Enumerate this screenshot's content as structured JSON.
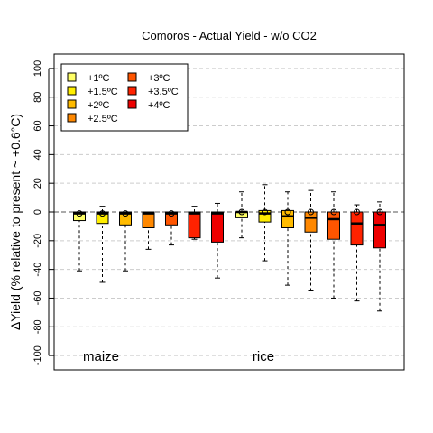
{
  "chart_data": {
    "type": "box",
    "title": "Comoros - Actual Yield - w/o CO2",
    "ylabel": "ΔYield (% relative to present ~ +0.6°C)",
    "xlabel": "",
    "ylim": [
      -110,
      110
    ],
    "yticks": [
      -100,
      -80,
      -60,
      -40,
      -20,
      0,
      20,
      40,
      60,
      80,
      100
    ],
    "grid": true,
    "legend_position": "top-left",
    "legend": [
      {
        "label": "+1ºC",
        "color": "#ffff66"
      },
      {
        "label": "+1.5ºC",
        "color": "#ffee00"
      },
      {
        "label": "+2ºC",
        "color": "#ffbb00"
      },
      {
        "label": "+2.5ºC",
        "color": "#ff8800"
      },
      {
        "label": "+3ºC",
        "color": "#ff5500"
      },
      {
        "label": "+3.5ºC",
        "color": "#ff2200"
      },
      {
        "label": "+4ºC",
        "color": "#ee0000"
      }
    ],
    "groups": [
      {
        "name": "maize",
        "boxes": [
          {
            "warming": "+1ºC",
            "whisker_low": -41,
            "q1": -6,
            "median": -1,
            "q3": 0,
            "whisker_high": 0,
            "mean": -1
          },
          {
            "warming": "+1.5ºC",
            "whisker_low": -49,
            "q1": -8,
            "median": -1,
            "q3": 0,
            "whisker_high": 4,
            "mean": -1
          },
          {
            "warming": "+2ºC",
            "whisker_low": -41,
            "q1": -9,
            "median": -1,
            "q3": 0,
            "whisker_high": 0,
            "mean": -1
          },
          {
            "warming": "+2.5ºC",
            "whisker_low": -26,
            "q1": -11,
            "median": -1,
            "q3": 0,
            "whisker_high": 0,
            "mean": null
          },
          {
            "warming": "+3ºC",
            "whisker_low": -23,
            "q1": -9,
            "median": -1,
            "q3": 0,
            "whisker_high": 0,
            "mean": -1
          },
          {
            "warming": "+3.5ºC",
            "whisker_low": -19,
            "q1": -18,
            "median": -1,
            "q3": 0,
            "whisker_high": 4,
            "mean": null
          },
          {
            "warming": "+4ºC",
            "whisker_low": -46,
            "q1": -21,
            "median": -1,
            "q3": 0,
            "whisker_high": 6,
            "mean": null
          }
        ]
      },
      {
        "name": "rice",
        "boxes": [
          {
            "warming": "+1ºC",
            "whisker_low": -18,
            "q1": -4,
            "median": 0,
            "q3": 0,
            "whisker_high": 14,
            "mean": 0
          },
          {
            "warming": "+1.5ºC",
            "whisker_low": -34,
            "q1": -7,
            "median": -1,
            "q3": 1,
            "whisker_high": 19,
            "mean": 0
          },
          {
            "warming": "+2ºC",
            "whisker_low": -51,
            "q1": -11,
            "median": -3,
            "q3": 1,
            "whisker_high": 14,
            "mean": 0
          },
          {
            "warming": "+2.5ºC",
            "whisker_low": -55,
            "q1": -14,
            "median": -4,
            "q3": 0,
            "whisker_high": 15,
            "mean": 0
          },
          {
            "warming": "+3ºC",
            "whisker_low": -60,
            "q1": -19,
            "median": -5,
            "q3": 0,
            "whisker_high": 14,
            "mean": 0
          },
          {
            "warming": "+3.5ºC",
            "whisker_low": -62,
            "q1": -23,
            "median": -8,
            "q3": 0,
            "whisker_high": 5,
            "mean": 0
          },
          {
            "warming": "+4ºC",
            "whisker_low": -69,
            "q1": -25,
            "median": -9,
            "q3": 0,
            "whisker_high": 7,
            "mean": 0
          }
        ]
      }
    ]
  }
}
